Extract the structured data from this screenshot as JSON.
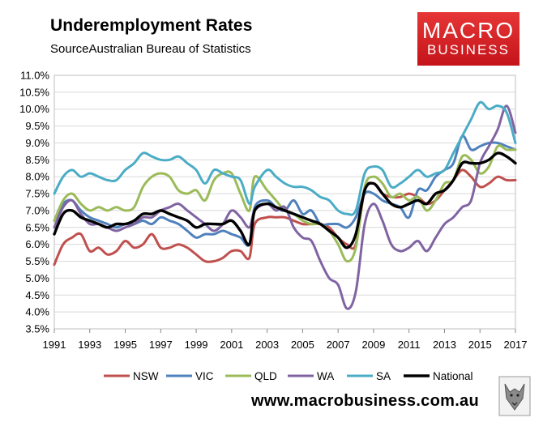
{
  "header": {
    "title": "Underemployment Rates",
    "source": "SourceAustralian Bureau of Statistics"
  },
  "logo": {
    "line1": "MACRO",
    "line2": "BUSINESS"
  },
  "footer": {
    "url": "www.macrobusiness.com.au"
  },
  "colors": {
    "NSW": "#c0504d",
    "VIC": "#4f81bd",
    "QLD": "#9bbb59",
    "WA": "#8064a2",
    "SA": "#4bacc6",
    "National": "#000000",
    "logo_red": "#d52027"
  },
  "chart_data": {
    "type": "line",
    "title": "Underemployment Rates",
    "xlabel": "",
    "ylabel": "",
    "x_ticks": [
      "1991",
      "1993",
      "1995",
      "1997",
      "1999",
      "2001",
      "2003",
      "2005",
      "2007",
      "2009",
      "2011",
      "2013",
      "2015",
      "2017"
    ],
    "y_ticks": [
      "3.5%",
      "4.0%",
      "4.5%",
      "5.0%",
      "5.5%",
      "6.0%",
      "6.5%",
      "7.0%",
      "7.5%",
      "8.0%",
      "8.5%",
      "9.0%",
      "9.5%",
      "10.0%",
      "10.5%",
      "11.0%"
    ],
    "xlim": [
      1991,
      2017
    ],
    "ylim": [
      3.5,
      11.0
    ],
    "grid": true,
    "legend_position": "bottom",
    "series": [
      {
        "name": "NSW",
        "x": [
          1991,
          1991.5,
          1992,
          1992.5,
          1993,
          1993.5,
          1994,
          1994.5,
          1995,
          1995.5,
          1996,
          1996.5,
          1997,
          1997.5,
          1998,
          1998.5,
          1999,
          1999.5,
          2000,
          2000.5,
          2001,
          2001.5,
          2002,
          2002.3,
          2003,
          2003.5,
          2004,
          2004.5,
          2005,
          2005.5,
          2006,
          2006.5,
          2007,
          2007.5,
          2008,
          2008.5,
          2009,
          2009.5,
          2010,
          2010.5,
          2011,
          2011.5,
          2012,
          2012.5,
          2013,
          2013.5,
          2014,
          2014.5,
          2015,
          2015.5,
          2016,
          2016.5,
          2017
        ],
        "values": [
          5.4,
          6.0,
          6.2,
          6.3,
          5.8,
          5.9,
          5.7,
          5.8,
          6.1,
          5.9,
          6.0,
          6.3,
          5.9,
          5.9,
          6.0,
          5.9,
          5.7,
          5.5,
          5.5,
          5.6,
          5.8,
          5.8,
          5.6,
          6.6,
          6.8,
          6.8,
          6.8,
          6.7,
          6.6,
          6.6,
          6.6,
          6.5,
          6.2,
          6.0,
          6.0,
          7.6,
          7.8,
          7.5,
          7.4,
          7.4,
          7.5,
          7.4,
          7.2,
          7.3,
          7.6,
          7.9,
          8.2,
          8.0,
          7.7,
          7.8,
          8.0,
          7.9,
          7.9
        ]
      },
      {
        "name": "VIC",
        "x": [
          1991,
          1991.5,
          1992,
          1992.5,
          1993,
          1993.5,
          1994,
          1994.5,
          1995,
          1995.5,
          1996,
          1996.5,
          1997,
          1997.5,
          1998,
          1998.5,
          1999,
          1999.5,
          2000,
          2000.5,
          2001,
          2001.5,
          2002,
          2002.3,
          2003,
          2003.5,
          2004,
          2004.5,
          2005,
          2005.5,
          2006,
          2006.5,
          2007,
          2007.5,
          2008,
          2008.5,
          2009,
          2009.5,
          2010,
          2010.5,
          2011,
          2011.5,
          2012,
          2012.5,
          2013,
          2013.5,
          2014,
          2014.5,
          2015,
          2015.5,
          2016,
          2016.5,
          2017
        ],
        "values": [
          6.7,
          7.2,
          7.3,
          7.0,
          6.8,
          6.7,
          6.6,
          6.5,
          6.6,
          6.6,
          6.7,
          6.6,
          6.8,
          6.7,
          6.6,
          6.4,
          6.2,
          6.3,
          6.3,
          6.4,
          6.3,
          6.2,
          6.0,
          7.1,
          7.3,
          7.1,
          7.0,
          7.3,
          6.9,
          7.0,
          6.6,
          6.6,
          6.6,
          6.5,
          6.8,
          7.5,
          7.5,
          7.3,
          7.2,
          7.1,
          6.8,
          7.6,
          7.6,
          8.0,
          8.2,
          8.4,
          9.2,
          8.8,
          8.9,
          9.0,
          9.0,
          8.9,
          8.8
        ]
      },
      {
        "name": "QLD",
        "x": [
          1991,
          1991.5,
          1992,
          1992.5,
          1993,
          1993.5,
          1994,
          1994.5,
          1995,
          1995.5,
          1996,
          1996.5,
          1997,
          1997.5,
          1998,
          1998.5,
          1999,
          1999.5,
          2000,
          2000.5,
          2001,
          2001.5,
          2002,
          2002.3,
          2003,
          2003.5,
          2004,
          2004.5,
          2005,
          2005.5,
          2006,
          2006.5,
          2007,
          2007.5,
          2008,
          2008.5,
          2009,
          2009.5,
          2010,
          2010.5,
          2011,
          2011.5,
          2012,
          2012.5,
          2013,
          2013.5,
          2014,
          2014.5,
          2015,
          2015.5,
          2016,
          2016.5,
          2017
        ],
        "values": [
          6.7,
          7.3,
          7.5,
          7.2,
          7.0,
          7.1,
          7.0,
          7.1,
          7.0,
          7.1,
          7.7,
          8.0,
          8.1,
          8.0,
          7.6,
          7.5,
          7.6,
          7.3,
          7.9,
          8.1,
          8.1,
          7.5,
          7.0,
          8.0,
          7.6,
          7.3,
          7.0,
          6.9,
          6.7,
          6.6,
          6.6,
          6.4,
          6.0,
          5.5,
          5.9,
          7.7,
          8.0,
          7.8,
          7.4,
          7.5,
          7.3,
          7.4,
          7.0,
          7.3,
          7.8,
          7.9,
          8.6,
          8.5,
          8.1,
          8.3,
          8.9,
          8.8,
          8.8
        ]
      },
      {
        "name": "WA",
        "x": [
          1991,
          1991.5,
          1992,
          1992.5,
          1993,
          1993.5,
          1994,
          1994.5,
          1995,
          1995.5,
          1996,
          1996.5,
          1997,
          1997.5,
          1998,
          1998.5,
          1999,
          1999.5,
          2000,
          2000.5,
          2001,
          2001.5,
          2002,
          2002.3,
          2003,
          2003.5,
          2004,
          2004.5,
          2005,
          2005.5,
          2006,
          2006.5,
          2007,
          2007.5,
          2008,
          2008.5,
          2009,
          2009.5,
          2010,
          2010.5,
          2011,
          2011.5,
          2012,
          2012.5,
          2013,
          2013.5,
          2014,
          2014.5,
          2015,
          2015.5,
          2016,
          2016.5,
          2017
        ],
        "values": [
          6.5,
          7.1,
          7.3,
          6.9,
          6.6,
          6.6,
          6.5,
          6.4,
          6.5,
          6.6,
          6.8,
          6.8,
          7.0,
          7.1,
          7.2,
          7.0,
          6.8,
          6.6,
          6.4,
          6.6,
          7.0,
          6.8,
          6.5,
          7.0,
          7.2,
          7.0,
          7.1,
          6.5,
          6.2,
          6.1,
          5.5,
          5.0,
          4.8,
          4.1,
          4.6,
          6.6,
          7.2,
          6.7,
          6.0,
          5.8,
          5.9,
          6.1,
          5.8,
          6.2,
          6.6,
          6.8,
          7.1,
          7.3,
          8.4,
          8.9,
          9.4,
          10.1,
          9.3
        ]
      },
      {
        "name": "SA",
        "x": [
          1991,
          1991.5,
          1992,
          1992.5,
          1993,
          1993.5,
          1994,
          1994.5,
          1995,
          1995.5,
          1996,
          1996.5,
          1997,
          1997.5,
          1998,
          1998.5,
          1999,
          1999.5,
          2000,
          2000.5,
          2001,
          2001.5,
          2002,
          2002.3,
          2003,
          2003.5,
          2004,
          2004.5,
          2005,
          2005.5,
          2006,
          2006.5,
          2007,
          2007.5,
          2008,
          2008.5,
          2009,
          2009.5,
          2010,
          2010.5,
          2011,
          2011.5,
          2012,
          2012.5,
          2013,
          2013.5,
          2014,
          2014.5,
          2015,
          2015.5,
          2016,
          2016.5,
          2017
        ],
        "values": [
          7.5,
          8.0,
          8.2,
          8.0,
          8.1,
          8.0,
          7.9,
          7.9,
          8.2,
          8.4,
          8.7,
          8.6,
          8.5,
          8.5,
          8.6,
          8.4,
          8.2,
          7.8,
          8.2,
          8.1,
          8.0,
          7.9,
          7.2,
          7.7,
          8.2,
          8.0,
          7.8,
          7.7,
          7.7,
          7.6,
          7.4,
          7.3,
          7.0,
          6.9,
          7.0,
          8.1,
          8.3,
          8.2,
          7.7,
          7.8,
          8.0,
          8.2,
          8.0,
          8.1,
          8.2,
          8.7,
          9.2,
          9.7,
          10.2,
          10.0,
          10.1,
          9.9,
          9.0
        ]
      },
      {
        "name": "National",
        "x": [
          1991,
          1991.5,
          1992,
          1992.5,
          1993,
          1993.5,
          1994,
          1994.5,
          1995,
          1995.5,
          1996,
          1996.5,
          1997,
          1997.5,
          1998,
          1998.5,
          1999,
          1999.5,
          2000,
          2000.5,
          2001,
          2001.5,
          2002,
          2002.3,
          2003,
          2003.5,
          2004,
          2004.5,
          2005,
          2005.5,
          2006,
          2006.5,
          2007,
          2007.5,
          2008,
          2008.5,
          2009,
          2009.5,
          2010,
          2010.5,
          2011,
          2011.5,
          2012,
          2012.5,
          2013,
          2013.5,
          2014,
          2014.5,
          2015,
          2015.5,
          2016,
          2016.5,
          2017
        ],
        "values": [
          6.3,
          6.9,
          7.0,
          6.8,
          6.7,
          6.6,
          6.5,
          6.6,
          6.6,
          6.7,
          6.9,
          6.9,
          7.0,
          6.9,
          6.8,
          6.7,
          6.5,
          6.6,
          6.6,
          6.6,
          6.7,
          6.4,
          6.0,
          7.0,
          7.2,
          7.1,
          7.0,
          6.9,
          6.8,
          6.7,
          6.6,
          6.4,
          6.2,
          5.9,
          6.3,
          7.6,
          7.8,
          7.5,
          7.2,
          7.1,
          7.2,
          7.3,
          7.2,
          7.5,
          7.6,
          7.9,
          8.4,
          8.4,
          8.4,
          8.5,
          8.7,
          8.6,
          8.4
        ]
      }
    ]
  }
}
